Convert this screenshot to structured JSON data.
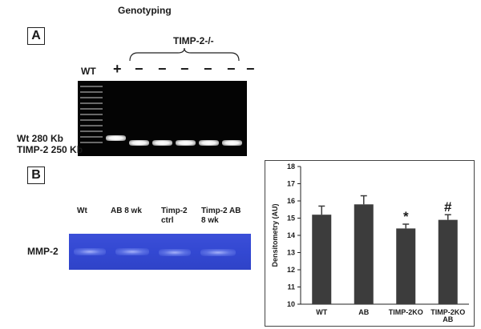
{
  "panel_a": {
    "title": "Genotyping",
    "panel_label": "A",
    "group_label": "TIMP-2-/-",
    "wt_lane_label": "WT",
    "lane_signs": [
      "+",
      "−",
      "−",
      "−",
      "−",
      "−",
      "−"
    ],
    "band_labels": [
      "Wt 280 Kb",
      "TIMP-2 250 Kb"
    ]
  },
  "panel_b": {
    "panel_label": "B",
    "lane_labels": [
      "Wt",
      "AB 8 wk",
      "Timp-2 ctrl",
      "Timp-2 AB 8 wk"
    ],
    "row_label": "MMP-2"
  },
  "colors": {
    "bar": "#3c3c3c",
    "gel_background": "#040404",
    "zymogram_blue": "#3348d2"
  },
  "chart_data": {
    "type": "bar",
    "categories": [
      "WT",
      "AB",
      "TIMP-2KO",
      "TIMP-2KO AB"
    ],
    "values": [
      15.2,
      15.8,
      14.4,
      14.9
    ],
    "errors": [
      0.5,
      0.5,
      0.25,
      0.3
    ],
    "annotations": [
      "",
      "",
      "*",
      "#"
    ],
    "ylabel": "Densitometry (AU)",
    "xlabel": "",
    "ylim": [
      10,
      18
    ],
    "yticks": [
      10,
      11,
      12,
      13,
      14,
      15,
      16,
      17,
      18
    ],
    "grid": false,
    "legend": "none"
  }
}
